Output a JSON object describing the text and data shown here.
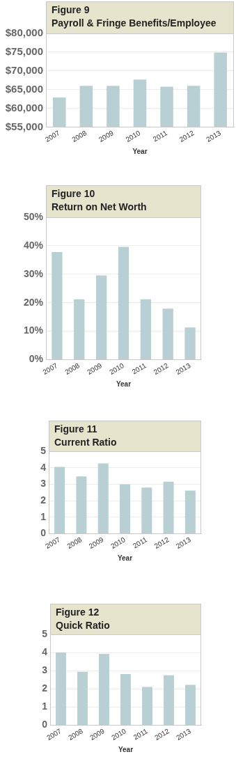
{
  "chart_data": [
    {
      "type": "bar",
      "title": "Figure 9",
      "subtitle": "Payroll & Fringe Benefits/Employee",
      "xlabel": "Year",
      "categories": [
        "2007",
        "2008",
        "2009",
        "2010",
        "2011",
        "2012",
        "2013"
      ],
      "values": [
        62900,
        66000,
        66000,
        67700,
        65800,
        66000,
        74900
      ],
      "color": "#b8cfd3",
      "ylim": [
        55000,
        80000
      ],
      "yticks": [
        {
          "value": 55000,
          "label": "$55,000"
        },
        {
          "value": 60000,
          "label": "$60,000"
        },
        {
          "value": 65000,
          "label": "$65,000"
        },
        {
          "value": 70000,
          "label": "$70,000"
        },
        {
          "value": 75000,
          "label": "$75,000"
        },
        {
          "value": 80000,
          "label": "$80,000"
        }
      ],
      "grid": "y",
      "legend": false
    },
    {
      "type": "bar",
      "title": "Figure 10",
      "subtitle": "Return on Net Worth",
      "xlabel": "Year",
      "categories": [
        "2007",
        "2008",
        "2009",
        "2010",
        "2011",
        "2012",
        "2013"
      ],
      "values": [
        37.8,
        21.2,
        29.6,
        39.6,
        21.2,
        17.9,
        11.3
      ],
      "color": "#b8cfd3",
      "ylim": [
        0,
        50
      ],
      "yticks": [
        {
          "value": 0,
          "label": "0%"
        },
        {
          "value": 10,
          "label": "10%"
        },
        {
          "value": 20,
          "label": "20%"
        },
        {
          "value": 30,
          "label": "30%"
        },
        {
          "value": 40,
          "label": "40%"
        },
        {
          "value": 50,
          "label": "50%"
        }
      ],
      "grid": "y",
      "legend": false
    },
    {
      "type": "bar",
      "title": "Figure 11",
      "subtitle": "Current Ratio",
      "xlabel": "Year",
      "categories": [
        "2007",
        "2008",
        "2009",
        "2010",
        "2011",
        "2012",
        "2013"
      ],
      "values": [
        4.05,
        3.47,
        4.26,
        3.0,
        2.8,
        3.15,
        2.62
      ],
      "color": "#b8cfd3",
      "ylim": [
        0,
        5
      ],
      "yticks": [
        0,
        1,
        2,
        3,
        4,
        5
      ],
      "grid": "y",
      "legend": false
    },
    {
      "type": "bar",
      "title": "Figure 12",
      "subtitle": "Quick Ratio",
      "xlabel": "Year",
      "categories": [
        "2007",
        "2008",
        "2009",
        "2010",
        "2011",
        "2012",
        "2013"
      ],
      "values": [
        4.0,
        2.94,
        3.93,
        2.82,
        2.11,
        2.75,
        2.22
      ],
      "color": "#b8cfd3",
      "ylim": [
        0,
        5
      ],
      "yticks": [
        0,
        1,
        2,
        3,
        4,
        5
      ],
      "grid": "y",
      "legend": false
    }
  ]
}
